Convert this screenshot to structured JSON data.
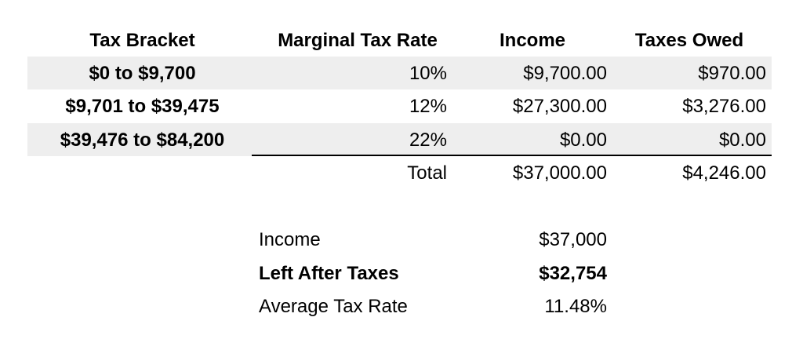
{
  "table": {
    "headers": {
      "bracket": "Tax Bracket",
      "rate": "Marginal Tax Rate",
      "income": "Income",
      "taxes": "Taxes Owed"
    },
    "rows": [
      {
        "bracket": "$0 to $9,700",
        "rate": "10%",
        "income": "$9,700.00",
        "taxes": "$970.00",
        "shaded": true
      },
      {
        "bracket": "$9,701 to $39,475",
        "rate": "12%",
        "income": "$27,300.00",
        "taxes": "$3,276.00",
        "shaded": false
      },
      {
        "bracket": "$39,476 to $84,200",
        "rate": "22%",
        "income": "$0.00",
        "taxes": "$0.00",
        "shaded": true
      }
    ],
    "total": {
      "label": "Total",
      "income": "$37,000.00",
      "taxes": "$4,246.00"
    }
  },
  "summary": {
    "income_label": "Income",
    "income_value": "$37,000",
    "left_label": "Left After Taxes",
    "left_value": "$32,754",
    "avg_label": "Average Tax Rate",
    "avg_value": "11.48%"
  }
}
